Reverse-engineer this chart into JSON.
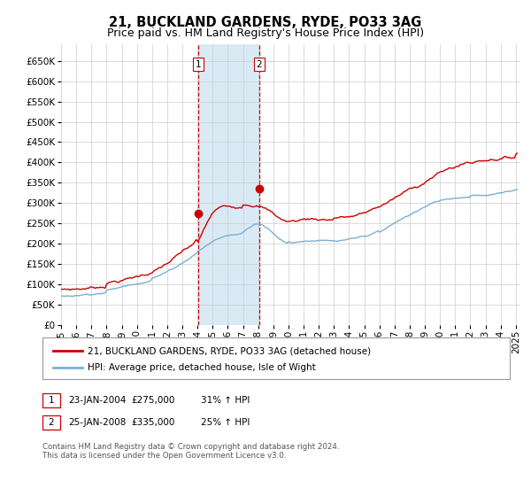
{
  "title": "21, BUCKLAND GARDENS, RYDE, PO33 3AG",
  "subtitle": "Price paid vs. HM Land Registry's House Price Index (HPI)",
  "ylabel_ticks": [
    0,
    50000,
    100000,
    150000,
    200000,
    250000,
    300000,
    350000,
    400000,
    450000,
    500000,
    550000,
    600000,
    650000
  ],
  "ylim": [
    0,
    690000
  ],
  "xlim_start": 1995.0,
  "xlim_end": 2025.3,
  "purchase1_date": 2004.056,
  "purchase1_price": 275000,
  "purchase2_date": 2008.056,
  "purchase2_price": 335000,
  "red_line_color": "#cc0000",
  "blue_line_color": "#7bafd4",
  "shade_color": "#daeaf5",
  "grid_color": "#cccccc",
  "background_color": "#ffffff",
  "legend_label_red": "21, BUCKLAND GARDENS, RYDE, PO33 3AG (detached house)",
  "legend_label_blue": "HPI: Average price, detached house, Isle of Wight",
  "note1_label": "1",
  "note1_date": "23-JAN-2004",
  "note1_price": "£275,000",
  "note1_hpi": "31% ↑ HPI",
  "note2_label": "2",
  "note2_date": "25-JAN-2008",
  "note2_price": "£335,000",
  "note2_hpi": "25% ↑ HPI",
  "footer": "Contains HM Land Registry data © Crown copyright and database right 2024.\nThis data is licensed under the Open Government Licence v3.0.",
  "title_fontsize": 10.5,
  "subtitle_fontsize": 9,
  "tick_fontsize": 7.5
}
